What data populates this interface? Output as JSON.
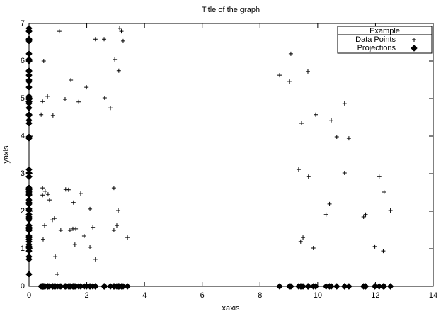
{
  "chart_data": {
    "type": "scatter",
    "title": "Title of the graph",
    "x_label": "xaxis",
    "y_label": "yaxis",
    "legend_title": "Example",
    "legend": "top-right",
    "xlim": [
      0,
      14
    ],
    "xticks": [
      0,
      2,
      4,
      6,
      8,
      10,
      12,
      14
    ],
    "ylim": [
      0,
      7
    ],
    "yticks": [
      0,
      1,
      2,
      3,
      4,
      5,
      6,
      7
    ],
    "series": [
      {
        "name": "Data Points",
        "marker": "plus",
        "color": "#000000",
        "x": [
          1.05,
          2.3,
          2.6,
          3.14,
          3.2,
          3.26,
          0.51,
          2.97,
          3.11,
          1.45,
          1.99,
          0.64,
          0.47,
          1.25,
          2.62,
          1.72,
          2.82,
          0.42,
          0.83,
          0.47,
          2.94,
          0.56,
          1.27,
          1.37,
          0.47,
          0.66,
          1.79,
          0.71,
          1.54,
          2.11,
          3.09,
          0.88,
          0.81,
          0.54,
          3.04,
          1.52,
          1.62,
          2.21,
          1.1,
          1.42,
          2.94,
          1.91,
          3.41,
          0.49,
          1.59,
          2.11,
          0.91,
          2.3,
          0.98,
          9.07,
          8.68,
          9.02,
          9.66,
          10.93,
          9.93,
          9.44,
          10.47,
          10.66,
          11.08,
          9.34,
          9.68,
          10.93,
          12.13,
          12.3,
          10.41,
          10.29,
          11.59,
          11.66,
          12.52,
          9.49,
          9.41,
          9.85,
          11.98,
          12.27
        ],
        "values": [
          6.79,
          6.58,
          6.58,
          6.87,
          6.79,
          6.53,
          6.0,
          6.04,
          5.74,
          5.49,
          5.3,
          5.06,
          4.92,
          4.98,
          5.02,
          4.91,
          4.75,
          4.57,
          4.55,
          2.62,
          2.62,
          2.53,
          2.58,
          2.57,
          2.43,
          2.45,
          2.47,
          2.3,
          2.23,
          2.06,
          2.02,
          1.81,
          1.77,
          1.62,
          1.62,
          1.53,
          1.53,
          1.57,
          1.49,
          1.49,
          1.49,
          1.34,
          1.3,
          1.25,
          1.11,
          1.04,
          0.79,
          0.72,
          0.32,
          6.19,
          5.62,
          5.45,
          5.72,
          4.87,
          4.57,
          4.34,
          4.42,
          3.98,
          3.94,
          3.11,
          2.92,
          3.02,
          2.92,
          2.51,
          2.19,
          1.91,
          1.85,
          1.91,
          2.02,
          1.3,
          1.19,
          1.02,
          1.06,
          0.94
        ]
      },
      {
        "name": "Projections",
        "marker": "diamond",
        "color": "#000000",
        "x": [
          1.05,
          2.3,
          2.6,
          3.14,
          3.2,
          3.26,
          0.51,
          2.97,
          3.11,
          1.45,
          1.99,
          0.64,
          0.47,
          1.25,
          2.62,
          1.72,
          2.82,
          0.42,
          0.83,
          0.47,
          2.94,
          0.56,
          1.27,
          1.37,
          0.47,
          0.66,
          1.79,
          0.71,
          1.54,
          2.11,
          3.09,
          0.88,
          0.81,
          0.54,
          3.04,
          1.52,
          1.62,
          2.21,
          1.1,
          1.42,
          2.94,
          1.91,
          3.41,
          0.49,
          1.59,
          2.11,
          0.91,
          2.3,
          0.98,
          9.07,
          8.68,
          9.02,
          9.66,
          10.93,
          9.93,
          9.44,
          10.47,
          10.66,
          11.08,
          9.34,
          9.68,
          10.93,
          12.13,
          12.3,
          10.41,
          10.29,
          11.59,
          11.66,
          12.52,
          9.49,
          9.41,
          9.85,
          11.98,
          12.27,
          0,
          0,
          0,
          0,
          0,
          0,
          0,
          0,
          0,
          0,
          0,
          0,
          0,
          0,
          0,
          0,
          0,
          0,
          0,
          0,
          0,
          0,
          0,
          0,
          0,
          0,
          0,
          0,
          0,
          0,
          0,
          0,
          0,
          0,
          0,
          0,
          0,
          0,
          0,
          0,
          0,
          0,
          0,
          0,
          0,
          0,
          0,
          0,
          0,
          0,
          0,
          0,
          0,
          0,
          0,
          0,
          0,
          0,
          0,
          0,
          0,
          0,
          0,
          0,
          0,
          0,
          0,
          0,
          0,
          0,
          0,
          0,
          0,
          0
        ],
        "values": [
          0,
          0,
          0,
          0,
          0,
          0,
          0,
          0,
          0,
          0,
          0,
          0,
          0,
          0,
          0,
          0,
          0,
          0,
          0,
          0,
          0,
          0,
          0,
          0,
          0,
          0,
          0,
          0,
          0,
          0,
          0,
          0,
          0,
          0,
          0,
          0,
          0,
          0,
          0,
          0,
          0,
          0,
          0,
          0,
          0,
          0,
          0,
          0,
          0,
          0,
          0,
          0,
          0,
          0,
          0,
          0,
          0,
          0,
          0,
          0,
          0,
          0,
          0,
          0,
          0,
          0,
          0,
          0,
          0,
          0,
          0,
          0,
          0,
          0,
          6.79,
          6.58,
          6.58,
          6.87,
          6.79,
          6.53,
          6.0,
          6.04,
          5.74,
          5.49,
          5.3,
          5.06,
          4.92,
          4.98,
          5.02,
          4.91,
          4.75,
          4.57,
          4.55,
          2.62,
          2.62,
          2.53,
          2.58,
          2.57,
          2.43,
          2.45,
          2.47,
          2.3,
          2.23,
          2.06,
          2.02,
          1.81,
          1.77,
          1.62,
          1.62,
          1.53,
          1.53,
          1.57,
          1.49,
          1.49,
          1.49,
          1.34,
          1.3,
          1.25,
          1.11,
          1.04,
          0.79,
          0.72,
          0.32,
          6.19,
          5.62,
          5.45,
          5.72,
          4.87,
          4.57,
          4.34,
          4.42,
          3.98,
          3.94,
          3.11,
          2.92,
          3.02,
          2.92,
          2.51,
          2.19,
          1.91,
          1.85,
          1.91,
          2.02,
          1.3,
          1.19,
          1.02,
          1.06,
          0.94
        ]
      }
    ]
  }
}
